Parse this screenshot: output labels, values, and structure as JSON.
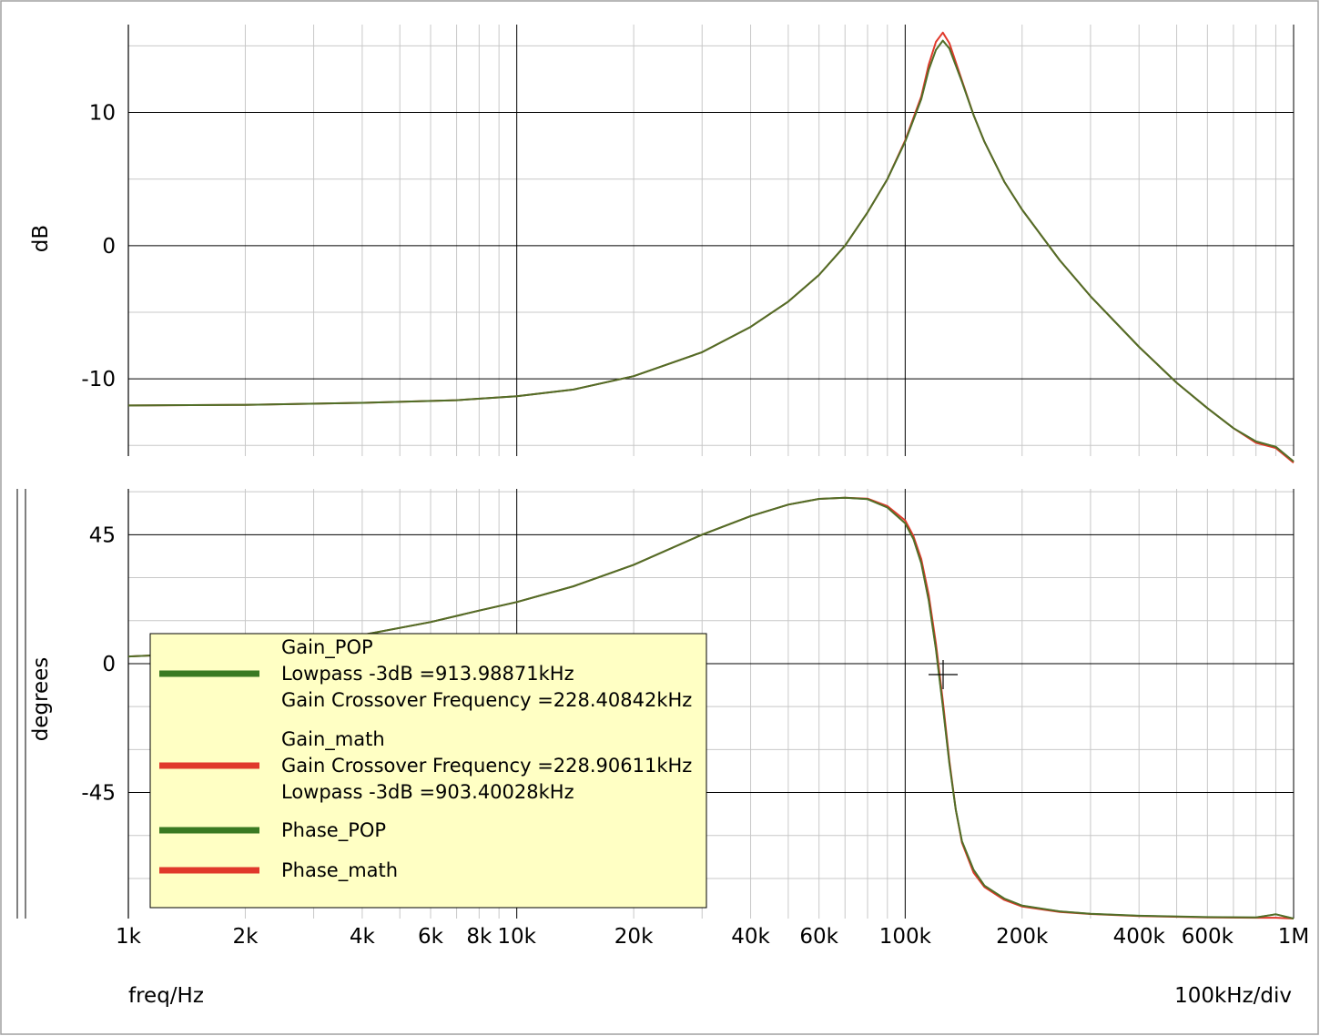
{
  "chart_data": [
    {
      "panel": "gain",
      "type": "line",
      "ylabel": "dB",
      "x_scale": "log",
      "xlim": [
        1000,
        1000000
      ],
      "ylim": [
        -15.8,
        16.6
      ],
      "y_ticks": [
        10,
        0,
        -10
      ],
      "y_tick_labels": [
        "10",
        "0",
        "-10"
      ],
      "grid": true,
      "series": [
        {
          "name": "Gain_POP",
          "color": "#3a7a22",
          "x": [
            1000,
            2000,
            4000,
            7000,
            10000,
            14000,
            20000,
            30000,
            40000,
            50000,
            60000,
            70000,
            80000,
            90000,
            100000,
            110000,
            115000,
            120000,
            125000,
            130000,
            140000,
            150000,
            160000,
            180000,
            200000,
            250000,
            300000,
            400000,
            500000,
            600000,
            700000,
            800000,
            900000,
            1000000
          ],
          "y": [
            -12.0,
            -11.95,
            -11.8,
            -11.6,
            -11.3,
            -10.8,
            -9.8,
            -8.0,
            -6.1,
            -4.2,
            -2.2,
            0.0,
            2.5,
            5.0,
            7.8,
            11.0,
            13.2,
            14.7,
            15.4,
            14.8,
            12.3,
            9.8,
            7.8,
            4.8,
            2.7,
            -1.1,
            -3.8,
            -7.6,
            -10.3,
            -12.2,
            -13.7,
            -14.7,
            -15.1,
            -16.2
          ]
        },
        {
          "name": "Gain_math",
          "color": "#e0392b",
          "x": [
            1000,
            2000,
            4000,
            7000,
            10000,
            14000,
            20000,
            30000,
            40000,
            50000,
            60000,
            70000,
            80000,
            90000,
            100000,
            110000,
            115000,
            120000,
            125000,
            130000,
            140000,
            150000,
            160000,
            180000,
            200000,
            250000,
            300000,
            400000,
            500000,
            600000,
            700000,
            800000,
            900000,
            1000000
          ],
          "y": [
            -12.0,
            -11.95,
            -11.8,
            -11.6,
            -11.3,
            -10.8,
            -9.8,
            -8.0,
            -6.1,
            -4.2,
            -2.2,
            0.0,
            2.5,
            5.0,
            7.9,
            11.2,
            13.6,
            15.3,
            16.0,
            15.2,
            12.4,
            9.8,
            7.8,
            4.8,
            2.7,
            -1.1,
            -3.8,
            -7.6,
            -10.3,
            -12.2,
            -13.7,
            -14.8,
            -15.2,
            -16.3
          ]
        }
      ]
    },
    {
      "panel": "phase",
      "type": "line",
      "ylabel": "degrees",
      "x_scale": "log",
      "xlim": [
        1000,
        1000000
      ],
      "ylim": [
        -89,
        61
      ],
      "y_ticks": [
        45,
        0,
        -45
      ],
      "y_tick_labels": [
        "45",
        "0",
        "-45"
      ],
      "grid": true,
      "series": [
        {
          "name": "Phase_POP",
          "color": "#3a7a22",
          "x": [
            1000,
            1500,
            2000,
            3000,
            4000,
            6000,
            8000,
            10000,
            14000,
            20000,
            30000,
            40000,
            50000,
            60000,
            70000,
            80000,
            90000,
            100000,
            105000,
            110000,
            115000,
            120000,
            125000,
            130000,
            135000,
            140000,
            150000,
            160000,
            180000,
            200000,
            250000,
            300000,
            400000,
            600000,
            800000,
            900000,
            1000000
          ],
          "y": [
            2.5,
            3.5,
            5.0,
            7.5,
            10.0,
            14.5,
            18.5,
            21.5,
            27.0,
            34.5,
            45.0,
            51.5,
            55.5,
            57.5,
            57.9,
            57.4,
            54.5,
            49.0,
            43.5,
            35.0,
            22.0,
            5.0,
            -15.0,
            -35.0,
            -51.0,
            -62.0,
            -72.0,
            -77.5,
            -82.0,
            -84.5,
            -86.5,
            -87.3,
            -88.0,
            -88.5,
            -88.6,
            -87.5,
            -89.0
          ]
        },
        {
          "name": "Phase_math",
          "color": "#e0392b",
          "x": [
            1000,
            1500,
            2000,
            3000,
            4000,
            6000,
            8000,
            10000,
            14000,
            20000,
            30000,
            40000,
            50000,
            60000,
            70000,
            80000,
            90000,
            100000,
            105000,
            110000,
            115000,
            120000,
            125000,
            130000,
            135000,
            140000,
            150000,
            160000,
            180000,
            200000,
            250000,
            300000,
            400000,
            600000,
            800000,
            900000,
            1000000
          ],
          "y": [
            2.5,
            3.5,
            5.0,
            7.5,
            10.0,
            14.5,
            18.5,
            21.5,
            27.0,
            34.5,
            45.0,
            51.5,
            55.5,
            57.5,
            57.9,
            57.6,
            55.0,
            50.0,
            44.5,
            36.5,
            24.0,
            7.0,
            -13.0,
            -34.0,
            -51.0,
            -62.5,
            -73.0,
            -78.0,
            -82.5,
            -84.8,
            -86.7,
            -87.4,
            -88.1,
            -88.6,
            -88.7,
            -88.7,
            -89.0
          ]
        }
      ]
    }
  ],
  "x_axis": {
    "tick_values": [
      1000,
      2000,
      4000,
      6000,
      8000,
      10000,
      20000,
      40000,
      60000,
      100000,
      200000,
      400000,
      600000,
      1000000
    ],
    "tick_labels": [
      "1k",
      "2k",
      "4k",
      "6k",
      "8k",
      "10k",
      "20k",
      "40k",
      "60k",
      "100k",
      "200k",
      "400k",
      "600k",
      "1M"
    ],
    "label": "freq/Hz",
    "division_label": "100kHz/div"
  },
  "legend": {
    "background": "#ffffc4",
    "entries": [
      {
        "color": "#3a7a22",
        "lines": [
          "Gain_POP",
          "Lowpass -3dB =913.98871kHz",
          "Gain Crossover Frequency =228.40842kHz"
        ]
      },
      {
        "color": "#e0392b",
        "lines": [
          "Gain_math",
          "Gain Crossover Frequency =228.90611kHz",
          "Lowpass -3dB =903.40028kHz"
        ]
      },
      {
        "color": "#3a7a22",
        "lines": [
          "Phase_POP"
        ]
      },
      {
        "color": "#e0392b",
        "lines": [
          "Phase_math"
        ]
      }
    ]
  },
  "colors": {
    "grid_major": "#000000",
    "grid_minor": "#c8c8c8",
    "curve_mix": "#5a6a2a"
  }
}
